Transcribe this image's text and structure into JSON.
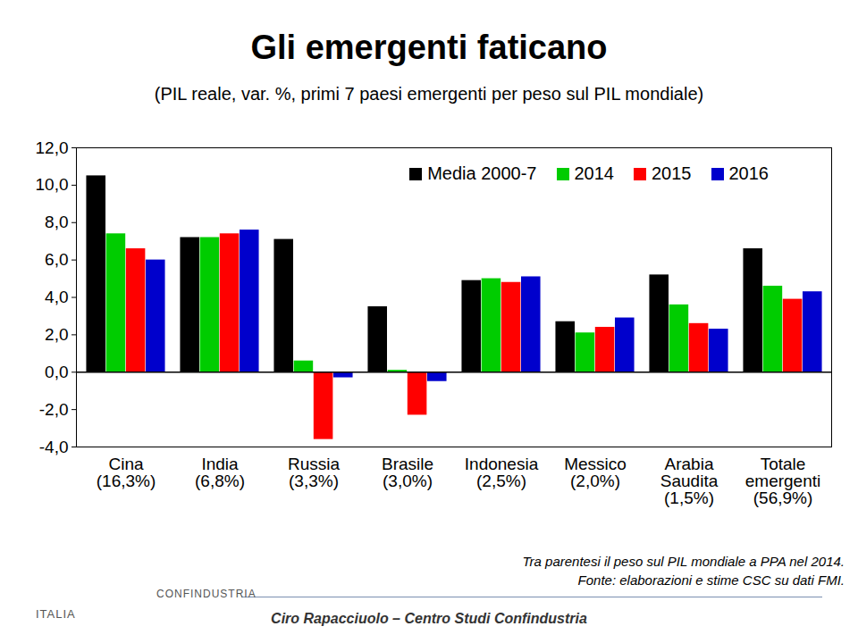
{
  "chart_data": {
    "type": "bar",
    "title": "Gli emergenti faticano",
    "subtitle": "(PIL reale, var. %, primi 7 paesi emergenti per peso sul PIL mondiale)",
    "categories": [
      "Cina\n(16,3%)",
      "India\n(6,8%)",
      "Russia\n(3,3%)",
      "Brasile\n(3,0%)",
      "Indonesia\n(2,5%)",
      "Messico\n(2,0%)",
      "Arabia\nSaudita\n(1,5%)",
      "Totale\nemergenti\n(56,9%)"
    ],
    "series": [
      {
        "name": "Media 2000-7",
        "color": "#000000",
        "values": [
          10.5,
          7.2,
          7.1,
          3.5,
          4.9,
          2.7,
          5.2,
          6.6
        ]
      },
      {
        "name": "2014",
        "color": "#00cc00",
        "values": [
          7.4,
          7.2,
          0.6,
          0.1,
          5.0,
          2.1,
          3.6,
          4.6
        ]
      },
      {
        "name": "2015",
        "color": "#ff0000",
        "values": [
          6.6,
          7.4,
          -3.6,
          -2.3,
          4.8,
          2.4,
          2.6,
          3.9
        ]
      },
      {
        "name": "2016",
        "color": "#0000cc",
        "values": [
          6.0,
          7.6,
          -0.3,
          -0.5,
          5.1,
          2.9,
          2.3,
          4.3
        ]
      }
    ],
    "ylim": [
      -4,
      12
    ],
    "yticks": [
      {
        "value": -4,
        "label": "-4,0"
      },
      {
        "value": -2,
        "label": "-2,0"
      },
      {
        "value": 0,
        "label": "0,0"
      },
      {
        "value": 2,
        "label": "2,0"
      },
      {
        "value": 4,
        "label": "4,0"
      },
      {
        "value": 6,
        "label": "6,0"
      },
      {
        "value": 8,
        "label": "8,0"
      },
      {
        "value": 10,
        "label": "10,0"
      },
      {
        "value": 12,
        "label": "12,0"
      }
    ],
    "legend": "top-right",
    "grid": false,
    "notes": [
      "Tra parentesi il peso sul PIL mondiale a PPA nel 2014.",
      "Fonte: elaborazioni e stime CSC su dati FMI."
    ],
    "author": "Ciro Rapacciuolo – Centro Studi Confindustria",
    "logos": [
      "ITALIA",
      "CONFINDUSTRIA"
    ]
  }
}
